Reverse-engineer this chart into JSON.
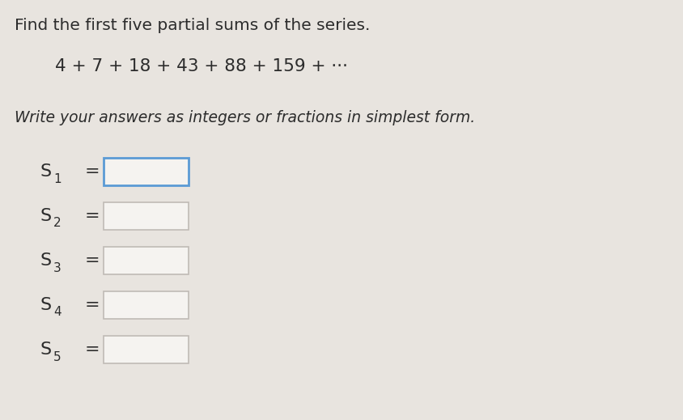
{
  "title_line": "Find the first five partial sums of the series.",
  "series_line": "4 + 7 + 18 + 43 + 88 + 159 + ···",
  "instruction_line": "Write your answers as integers or fractions in simplest form.",
  "subscripts": [
    "1",
    "2",
    "3",
    "4",
    "5"
  ],
  "background_color": "#e8e4df",
  "box_fill_color": "#f5f3f0",
  "box_border_default": "#c0bbb6",
  "box_border_first": "#5b9bd5",
  "title_fontsize": 14.5,
  "series_fontsize": 15.5,
  "instruction_fontsize": 13.5,
  "label_fontsize": 16,
  "sub_fontsize": 11,
  "eq_fontsize": 16,
  "text_color": "#2c2c2c"
}
